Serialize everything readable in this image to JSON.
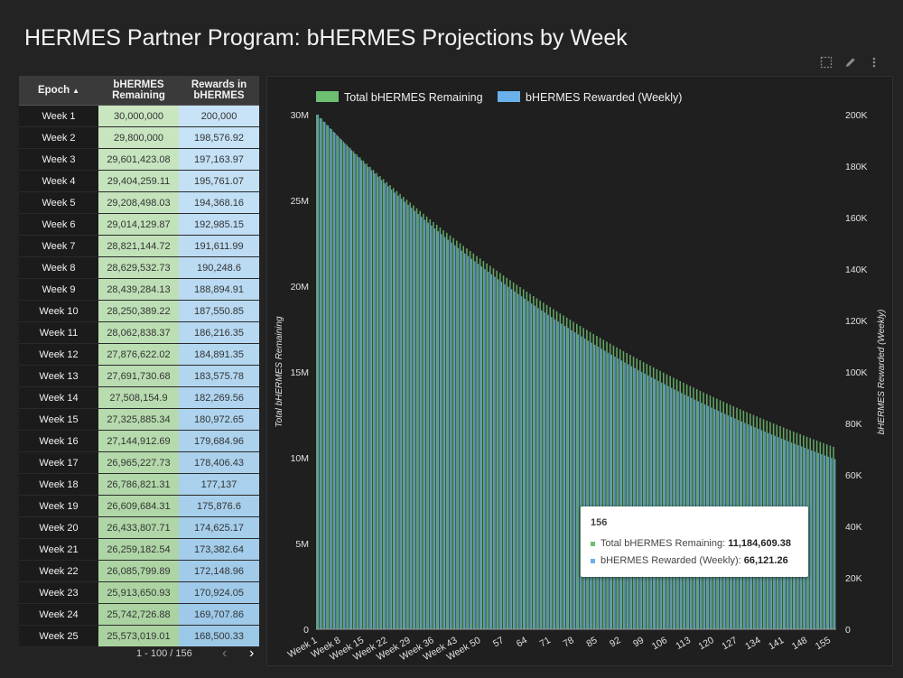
{
  "title": "HERMES Partner Program: bHERMES Projections by Week",
  "table": {
    "headers": {
      "epoch": "Epoch",
      "remaining": "bHERMES Remaining",
      "rewards": "Rewards in bHERMES"
    },
    "sort_indicator": "▲",
    "rows": [
      {
        "epoch": "Week 1",
        "remaining": "30,000,000",
        "rewards": "200,000"
      },
      {
        "epoch": "Week 2",
        "remaining": "29,800,000",
        "rewards": "198,576.92"
      },
      {
        "epoch": "Week 3",
        "remaining": "29,601,423.08",
        "rewards": "197,163.97"
      },
      {
        "epoch": "Week 4",
        "remaining": "29,404,259.11",
        "rewards": "195,761.07"
      },
      {
        "epoch": "Week 5",
        "remaining": "29,208,498.03",
        "rewards": "194,368.16"
      },
      {
        "epoch": "Week 6",
        "remaining": "29,014,129.87",
        "rewards": "192,985.15"
      },
      {
        "epoch": "Week 7",
        "remaining": "28,821,144.72",
        "rewards": "191,611.99"
      },
      {
        "epoch": "Week 8",
        "remaining": "28,629,532.73",
        "rewards": "190,248.6"
      },
      {
        "epoch": "Week 9",
        "remaining": "28,439,284.13",
        "rewards": "188,894.91"
      },
      {
        "epoch": "Week 10",
        "remaining": "28,250,389.22",
        "rewards": "187,550.85"
      },
      {
        "epoch": "Week 11",
        "remaining": "28,062,838.37",
        "rewards": "186,216.35"
      },
      {
        "epoch": "Week 12",
        "remaining": "27,876,622.02",
        "rewards": "184,891.35"
      },
      {
        "epoch": "Week 13",
        "remaining": "27,691,730.68",
        "rewards": "183,575.78"
      },
      {
        "epoch": "Week 14",
        "remaining": "27,508,154.9",
        "rewards": "182,269.56"
      },
      {
        "epoch": "Week 15",
        "remaining": "27,325,885.34",
        "rewards": "180,972.65"
      },
      {
        "epoch": "Week 16",
        "remaining": "27,144,912.69",
        "rewards": "179,684.96"
      },
      {
        "epoch": "Week 17",
        "remaining": "26,965,227.73",
        "rewards": "178,406.43"
      },
      {
        "epoch": "Week 18",
        "remaining": "26,786,821.31",
        "rewards": "177,137"
      },
      {
        "epoch": "Week 19",
        "remaining": "26,609,684.31",
        "rewards": "175,876.6"
      },
      {
        "epoch": "Week 20",
        "remaining": "26,433,807.71",
        "rewards": "174,625.17"
      },
      {
        "epoch": "Week 21",
        "remaining": "26,259,182.54",
        "rewards": "173,382.64"
      },
      {
        "epoch": "Week 22",
        "remaining": "26,085,799.89",
        "rewards": "172,148.96"
      },
      {
        "epoch": "Week 23",
        "remaining": "25,913,650.93",
        "rewards": "170,924.05"
      },
      {
        "epoch": "Week 24",
        "remaining": "25,742,726.88",
        "rewards": "169,707.86"
      },
      {
        "epoch": "Week 25",
        "remaining": "25,573,019.01",
        "rewards": "168,500.33"
      }
    ],
    "colors": {
      "remaining_start": "#c9e6c1",
      "remaining_end": "#a9d2a0",
      "rewards_start": "#c8e3f7",
      "rewards_end": "#9cc8e8"
    }
  },
  "pagination": {
    "text": "1 - 100 / 156",
    "prev": "‹",
    "next": "›"
  },
  "toolbar": {
    "icons": [
      "select-icon",
      "edit-icon",
      "more-icon"
    ]
  },
  "tooltip": {
    "title": "156",
    "line1_label": "Total bHERMES Remaining:",
    "line1_value": "11,184,609.38",
    "line2_label": "bHERMES Rewarded (Weekly):",
    "line2_value": "66,121.26"
  },
  "chart_data": {
    "type": "bar",
    "weeks": 156,
    "x_tick_labels": [
      "Week 1",
      "Week 8",
      "Week 15",
      "Week 22",
      "Week 29",
      "Week 36",
      "Week 43",
      "Week 50",
      "57",
      "64",
      "71",
      "78",
      "85",
      "92",
      "99",
      "106",
      "113",
      "120",
      "127",
      "134",
      "141",
      "148",
      "155"
    ],
    "x_tick_weeks": [
      1,
      8,
      15,
      22,
      29,
      36,
      43,
      50,
      57,
      64,
      71,
      78,
      85,
      92,
      99,
      106,
      113,
      120,
      127,
      134,
      141,
      148,
      155
    ],
    "ylabel_left": "Total bHERMES Remaining",
    "ylabel_right": "bHERMES Rewarded (Weekly)",
    "ylim_left": [
      0,
      30000000
    ],
    "ylim_right": [
      0,
      200000
    ],
    "left_ticks": [
      {
        "v": 0,
        "label": "0"
      },
      {
        "v": 5000000,
        "label": "5M"
      },
      {
        "v": 10000000,
        "label": "10M"
      },
      {
        "v": 15000000,
        "label": "15M"
      },
      {
        "v": 20000000,
        "label": "20M"
      },
      {
        "v": 25000000,
        "label": "25M"
      },
      {
        "v": 30000000,
        "label": "30M"
      }
    ],
    "right_ticks": [
      {
        "v": 0,
        "label": "0"
      },
      {
        "v": 20000,
        "label": "20K"
      },
      {
        "v": 40000,
        "label": "40K"
      },
      {
        "v": 60000,
        "label": "60K"
      },
      {
        "v": 80000,
        "label": "80K"
      },
      {
        "v": 100000,
        "label": "100K"
      },
      {
        "v": 120000,
        "label": "120K"
      },
      {
        "v": 140000,
        "label": "140K"
      },
      {
        "v": 160000,
        "label": "160K"
      },
      {
        "v": 180000,
        "label": "180K"
      },
      {
        "v": 200000,
        "label": "200K"
      }
    ],
    "series": [
      {
        "name": "Total bHERMES Remaining",
        "color": "#6fbf73",
        "axis": "left",
        "start": 30000000,
        "decay": 0.9933333333
      },
      {
        "name": "bHERMES Rewarded (Weekly)",
        "color": "#6ab0ea",
        "axis": "right",
        "start": 200000,
        "decay": 0.9928846
      }
    ],
    "legend_position": "top-left",
    "grid": false
  }
}
